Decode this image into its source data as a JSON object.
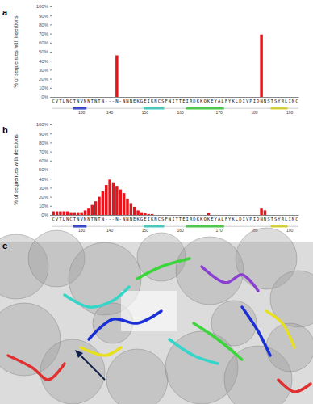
{
  "chart_data": [
    {
      "type": "bar",
      "label": "a",
      "y_label": "% of sequences with insertions",
      "color": "#e8141c",
      "categories": [
        "C",
        "V",
        "T",
        "L",
        "N",
        "C",
        "T",
        "N",
        "V",
        "N",
        "N",
        "T",
        "N",
        "T",
        "N",
        "-",
        "-",
        "-",
        "N",
        "-",
        "N",
        "N",
        "N",
        "E",
        "K",
        "G",
        "E",
        "I",
        "K",
        "N",
        "C",
        "S",
        "F",
        "N",
        "I",
        "T",
        "T",
        "E",
        "I",
        "R",
        "D",
        "K",
        "K",
        "Q",
        "K",
        "E",
        "Y",
        "A",
        "L",
        "F",
        "Y",
        "K",
        "L",
        "D",
        "I",
        "V",
        "P",
        "I",
        "D",
        "N",
        "N",
        "S",
        "T",
        "S",
        "Y",
        "R",
        "L",
        "I",
        "N",
        "C"
      ],
      "values": [
        0,
        0,
        0,
        0,
        0,
        0,
        0,
        0,
        0,
        0,
        0,
        0,
        0,
        0,
        0,
        0,
        0,
        0,
        46,
        0,
        0,
        0,
        0,
        0,
        0,
        0,
        0,
        0,
        0,
        0,
        0,
        0,
        0,
        0,
        0,
        0,
        0,
        0,
        0,
        0,
        0,
        0,
        0,
        0,
        0,
        0,
        0,
        0,
        0,
        0,
        0,
        0,
        0,
        0,
        0,
        0,
        0,
        0,
        0,
        69,
        0,
        0,
        0,
        0,
        0,
        0,
        0,
        0,
        0,
        0
      ],
      "ylim": [
        0,
        100
      ],
      "yticks": [
        {
          "value": 0,
          "label": "0%"
        },
        {
          "value": 10,
          "label": "10%"
        },
        {
          "value": 20,
          "label": "20%"
        },
        {
          "value": 30,
          "label": "30%"
        },
        {
          "value": 40,
          "label": "40%"
        },
        {
          "value": 50,
          "label": "50%"
        },
        {
          "value": 60,
          "label": "60%"
        },
        {
          "value": 70,
          "label": "70%"
        },
        {
          "value": 80,
          "label": "80%"
        },
        {
          "value": 90,
          "label": "90%"
        },
        {
          "value": 100,
          "label": "100%"
        }
      ],
      "residue_numbers": [
        {
          "index": 8,
          "label": "130"
        },
        {
          "index": 16,
          "label": "140"
        },
        {
          "index": 26,
          "label": "150"
        },
        {
          "index": 36,
          "label": "160"
        },
        {
          "index": 47,
          "label": "170"
        },
        {
          "index": 57,
          "label": "180"
        },
        {
          "index": 67,
          "label": "190"
        }
      ],
      "structure": [
        {
          "start": 6,
          "end": 9,
          "color": "#1a2fd6"
        },
        {
          "start": 26,
          "end": 31,
          "color": "#33d6c8"
        },
        {
          "start": 38,
          "end": 48,
          "color": "#3ad63a"
        },
        {
          "start": 62,
          "end": 66,
          "color": "#e6e020"
        }
      ],
      "grid": false
    },
    {
      "type": "bar",
      "label": "b",
      "y_label": "% of sequences with deletions",
      "color": "#e8141c",
      "categories": [
        "C",
        "V",
        "T",
        "L",
        "N",
        "C",
        "T",
        "N",
        "V",
        "N",
        "N",
        "T",
        "N",
        "T",
        "N",
        "-",
        "-",
        "-",
        "N",
        "-",
        "N",
        "N",
        "N",
        "E",
        "K",
        "G",
        "E",
        "I",
        "K",
        "N",
        "C",
        "S",
        "F",
        "N",
        "I",
        "T",
        "T",
        "E",
        "I",
        "R",
        "D",
        "K",
        "K",
        "Q",
        "K",
        "E",
        "Y",
        "A",
        "L",
        "F",
        "Y",
        "K",
        "L",
        "D",
        "I",
        "V",
        "P",
        "I",
        "D",
        "N",
        "N",
        "S",
        "T",
        "S",
        "Y",
        "R",
        "L",
        "I",
        "N",
        "C"
      ],
      "values": [
        4,
        4,
        4,
        4,
        4,
        3,
        3,
        3,
        3,
        5,
        7,
        11,
        15,
        20,
        26,
        33,
        39,
        36,
        32,
        28,
        24,
        18,
        13,
        9,
        5,
        3,
        2,
        1,
        1,
        0,
        0,
        0,
        0,
        0,
        0,
        0,
        0,
        0,
        0,
        0,
        0,
        0,
        0,
        0,
        2,
        0,
        0,
        0,
        0,
        0,
        0,
        0,
        0,
        0,
        0,
        0,
        0,
        0,
        0,
        7,
        5,
        0,
        0,
        0,
        0,
        0,
        0,
        0,
        0,
        0
      ],
      "ylim": [
        0,
        100
      ],
      "yticks": [
        {
          "value": 0,
          "label": "0%"
        },
        {
          "value": 10,
          "label": "10%"
        },
        {
          "value": 20,
          "label": "20%"
        },
        {
          "value": 30,
          "label": "30%"
        },
        {
          "value": 40,
          "label": "40%"
        },
        {
          "value": 50,
          "label": "50%"
        },
        {
          "value": 60,
          "label": "60%"
        },
        {
          "value": 70,
          "label": "70%"
        },
        {
          "value": 80,
          "label": "80%"
        },
        {
          "value": 90,
          "label": "90%"
        },
        {
          "value": 100,
          "label": "100%"
        }
      ],
      "residue_numbers": [
        {
          "index": 8,
          "label": "130"
        },
        {
          "index": 16,
          "label": "140"
        },
        {
          "index": 26,
          "label": "150"
        },
        {
          "index": 36,
          "label": "160"
        },
        {
          "index": 47,
          "label": "170"
        },
        {
          "index": 57,
          "label": "180"
        },
        {
          "index": 67,
          "label": "190"
        }
      ],
      "structure": [
        {
          "start": 6,
          "end": 9,
          "color": "#1a2fd6"
        },
        {
          "start": 26,
          "end": 31,
          "color": "#33d6c8"
        },
        {
          "start": 38,
          "end": 48,
          "color": "#3ad63a"
        },
        {
          "start": 62,
          "end": 66,
          "color": "#e6e020"
        }
      ],
      "grid": false
    }
  ],
  "image": {
    "label": "c"
  }
}
